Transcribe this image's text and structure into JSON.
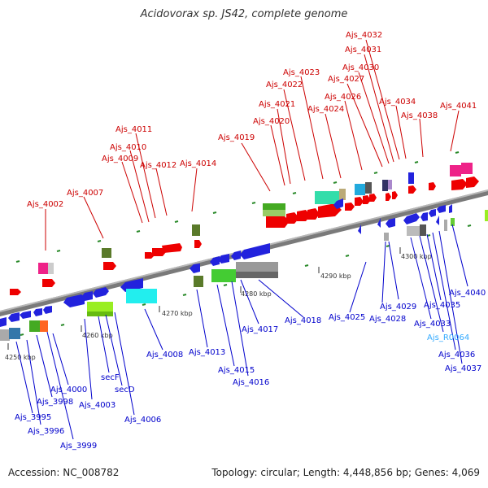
{
  "title": "Acidovorax sp. JS42, complete genome",
  "colors": {
    "forward_label": "#cc0000",
    "reverse_label": "#0000cc",
    "rna_label": "#33aaff"
  },
  "scale_labels": [
    "4250 kbp",
    "4260 kbp",
    "4270 kbp",
    "4280 kbp",
    "4290 kbp",
    "4300 kbp"
  ],
  "top_labels": [
    {
      "id": "t4002",
      "text": "Ajs_4002"
    },
    {
      "id": "t4007",
      "text": "Ajs_4007"
    },
    {
      "id": "t4009",
      "text": "Ajs_4009"
    },
    {
      "id": "t4010",
      "text": "Ajs_4010"
    },
    {
      "id": "t4011",
      "text": "Ajs_4011"
    },
    {
      "id": "t4012",
      "text": "Ajs_4012"
    },
    {
      "id": "t4014",
      "text": "Ajs_4014"
    },
    {
      "id": "t4019",
      "text": "Ajs_4019"
    },
    {
      "id": "t4020",
      "text": "Ajs_4020"
    },
    {
      "id": "t4021",
      "text": "Ajs_4021"
    },
    {
      "id": "t4022",
      "text": "Ajs_4022"
    },
    {
      "id": "t4023",
      "text": "Ajs_4023"
    },
    {
      "id": "t4024",
      "text": "Ajs_4024"
    },
    {
      "id": "t4026",
      "text": "Ajs_4026"
    },
    {
      "id": "t4027",
      "text": "Ajs_4027"
    },
    {
      "id": "t4030",
      "text": "Ajs_4030"
    },
    {
      "id": "t4031",
      "text": "Ajs_4031"
    },
    {
      "id": "t4032",
      "text": "Ajs_4032"
    },
    {
      "id": "t4034",
      "text": "Ajs_4034"
    },
    {
      "id": "t4038",
      "text": "Ajs_4038"
    },
    {
      "id": "t4041",
      "text": "Ajs_4041"
    }
  ],
  "bottom_labels": [
    {
      "id": "b3995",
      "text": "Ajs_3995"
    },
    {
      "id": "b3996",
      "text": "Ajs_3996"
    },
    {
      "id": "b3998",
      "text": "Ajs_3998"
    },
    {
      "id": "b3999",
      "text": "Ajs_3999"
    },
    {
      "id": "b4000",
      "text": "Ajs_4000"
    },
    {
      "id": "b4003",
      "text": "Ajs_4003"
    },
    {
      "id": "bsecF",
      "text": "secF"
    },
    {
      "id": "bsecD",
      "text": "secD"
    },
    {
      "id": "b4006",
      "text": "Ajs_4006"
    },
    {
      "id": "b4008",
      "text": "Ajs_4008"
    },
    {
      "id": "b4013",
      "text": "Ajs_4013"
    },
    {
      "id": "b4015",
      "text": "Ajs_4015"
    },
    {
      "id": "b4016",
      "text": "Ajs_4016"
    },
    {
      "id": "b4017",
      "text": "Ajs_4017"
    },
    {
      "id": "b4018",
      "text": "Ajs_4018"
    },
    {
      "id": "b4025",
      "text": "Ajs_4025"
    },
    {
      "id": "b4028",
      "text": "Ajs_4028"
    },
    {
      "id": "b4029",
      "text": "Ajs_4029"
    },
    {
      "id": "b4033",
      "text": "Ajs_4033"
    },
    {
      "id": "bR0064",
      "text": "Ajs_R0064"
    },
    {
      "id": "b4035",
      "text": "Ajs_4035"
    },
    {
      "id": "b4036",
      "text": "Ajs_4036"
    },
    {
      "id": "b4037",
      "text": "Ajs_4037"
    },
    {
      "id": "b4040",
      "text": "Ajs_4040"
    }
  ],
  "footer": {
    "accession": "Accession: NC_008782",
    "summary": "Topology: circular; Length: 4,448,856 bp; Genes: 4,069"
  }
}
